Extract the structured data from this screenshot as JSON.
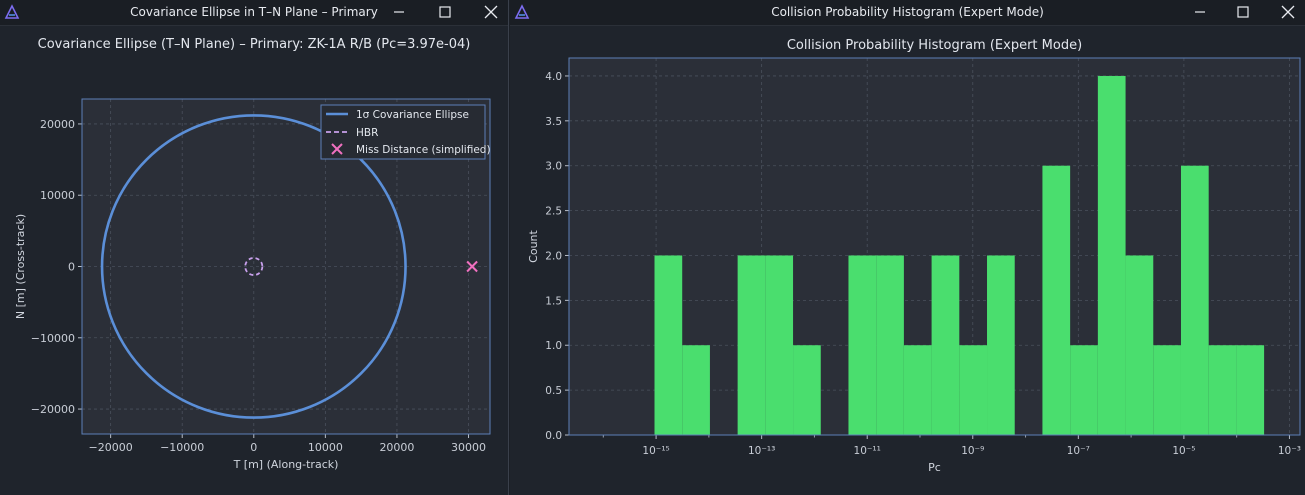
{
  "left_window": {
    "title": "Covariance Ellipse in T–N Plane – Primary",
    "icon": "app-logo-icon",
    "controls": [
      "minimize-icon",
      "maximize-icon",
      "close-icon"
    ]
  },
  "right_window": {
    "title": "Collision Probability Histogram (Expert Mode)",
    "icon": "app-logo-icon",
    "controls": [
      "minimize-icon",
      "maximize-icon",
      "close-icon"
    ]
  },
  "chart_data": [
    {
      "type": "scatter",
      "title": "Covariance Ellipse (T–N Plane) – Primary: ZK-1A R/B  (Pc=3.97e-04)",
      "xlabel": "T [m] (Along-track)",
      "ylabel": "N [m] (Cross-track)",
      "xlim": [
        -24000,
        33000
      ],
      "ylim": [
        -23500,
        23500
      ],
      "xticks": [
        -20000,
        -10000,
        0,
        10000,
        20000,
        30000
      ],
      "xtick_labels": [
        "−20000",
        "−10000",
        "0",
        "10000",
        "20000",
        "30000"
      ],
      "yticks": [
        20000,
        10000,
        0,
        -10000,
        -20000
      ],
      "ytick_labels": [
        "20000",
        "10000",
        "0",
        "−10000",
        "−20000"
      ],
      "grid": true,
      "legend_position": "top-right",
      "ellipse": {
        "cx": 0,
        "cy": 0,
        "rx": 21200,
        "ry": 21200
      },
      "hbr": {
        "cx": 0,
        "cy": 0,
        "r": 1200
      },
      "miss_point": {
        "x": 30500,
        "y": 0
      },
      "legend": [
        "1σ Covariance Ellipse",
        "HBR",
        "Miss Distance (simplified)"
      ],
      "colors": {
        "ellipse": "#5b8fd8",
        "hbr": "#c8a0ec",
        "miss": "#f070c0"
      }
    },
    {
      "type": "bar",
      "title": "Collision Probability Histogram (Expert Mode)",
      "xlabel": "Pc",
      "ylabel": "Count",
      "xscale": "log",
      "xlim_log10": [
        -16.65,
        -2.8
      ],
      "ylim": [
        0,
        4.2
      ],
      "yticks": [
        0.0,
        0.5,
        1.0,
        1.5,
        2.0,
        2.5,
        3.0,
        3.5,
        4.0
      ],
      "ytick_labels": [
        "0.0",
        "0.5",
        "1.0",
        "1.5",
        "2.0",
        "2.5",
        "3.0",
        "3.5",
        "4.0"
      ],
      "xtick_exponents": [
        -15,
        -13,
        -11,
        -9,
        -7,
        -5,
        -3
      ],
      "xtick_labels": [
        "10⁻¹⁵",
        "10⁻¹³",
        "10⁻¹¹",
        "10⁻⁹",
        "10⁻⁷",
        "10⁻⁵",
        "10⁻³"
      ],
      "grid": true,
      "bins_log10_start": -15.03,
      "bin_width_log10": 0.525,
      "values": [
        2,
        1,
        0,
        2,
        2,
        1,
        0,
        2,
        2,
        1,
        2,
        1,
        2,
        0,
        3,
        1,
        4,
        2,
        1,
        3,
        1,
        1
      ],
      "color": "#4ade6e"
    }
  ]
}
